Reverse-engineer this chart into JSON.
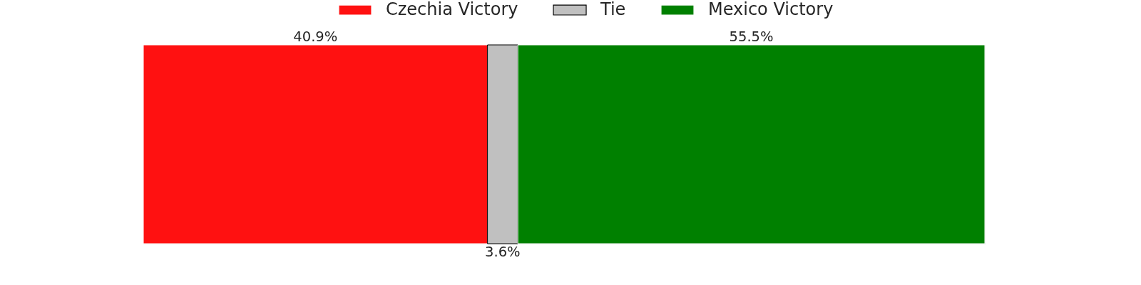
{
  "chart_data": {
    "type": "bar",
    "orientation": "horizontal",
    "stacked": true,
    "categories": [
      null
    ],
    "series": [
      {
        "name": "Czechia Victory",
        "color": "#ff1111",
        "values": [
          40.9
        ],
        "value_labels": [
          "40.9%"
        ]
      },
      {
        "name": "Tie",
        "color": "#c0c0c0",
        "values": [
          3.6
        ],
        "value_labels": [
          "3.6%"
        ]
      },
      {
        "name": "Mexico Victory",
        "color": "#008000",
        "values": [
          55.5
        ],
        "value_labels": [
          "55.5%"
        ]
      }
    ],
    "xlim": [
      0,
      100
    ],
    "tick_labels": false,
    "legend": "top"
  }
}
